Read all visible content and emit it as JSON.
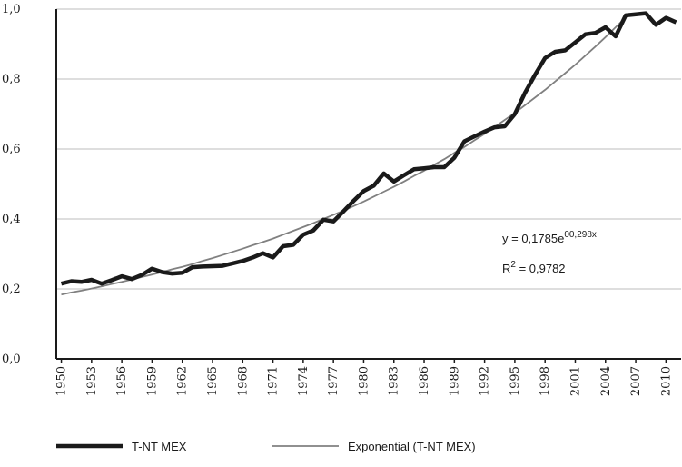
{
  "chart_data": {
    "type": "line",
    "x": [
      1950,
      1951,
      1952,
      1953,
      1954,
      1955,
      1956,
      1957,
      1958,
      1959,
      1960,
      1961,
      1962,
      1963,
      1964,
      1965,
      1966,
      1967,
      1968,
      1969,
      1970,
      1971,
      1972,
      1973,
      1974,
      1975,
      1976,
      1977,
      1978,
      1979,
      1980,
      1981,
      1982,
      1983,
      1984,
      1985,
      1986,
      1987,
      1988,
      1989,
      1990,
      1991,
      1992,
      1993,
      1994,
      1995,
      1996,
      1997,
      1998,
      1999,
      2000,
      2001,
      2002,
      2003,
      2004,
      2005,
      2006,
      2007,
      2008,
      2009,
      2010,
      2011
    ],
    "series": [
      {
        "name": "T-NT MEX",
        "color": "#1a1a1a",
        "width": 4.5,
        "values": [
          0.215,
          0.222,
          0.22,
          0.226,
          0.215,
          0.225,
          0.236,
          0.228,
          0.24,
          0.258,
          0.248,
          0.244,
          0.246,
          0.262,
          0.264,
          0.265,
          0.266,
          0.273,
          0.28,
          0.29,
          0.302,
          0.29,
          0.322,
          0.326,
          0.355,
          0.367,
          0.398,
          0.393,
          0.422,
          0.452,
          0.48,
          0.495,
          0.53,
          0.507,
          0.525,
          0.542,
          0.545,
          0.548,
          0.548,
          0.575,
          0.622,
          0.636,
          0.65,
          0.662,
          0.665,
          0.7,
          0.76,
          0.812,
          0.86,
          0.878,
          0.882,
          0.905,
          0.928,
          0.932,
          0.948,
          0.922,
          0.982,
          0.985,
          0.988,
          0.955,
          0.975,
          0.962
        ]
      },
      {
        "name": "Exponential (T-NT MEX)",
        "color": "#808080",
        "width": 1.8,
        "values": [
          0.184,
          0.19,
          0.195,
          0.201,
          0.207,
          0.214,
          0.22,
          0.227,
          0.234,
          0.241,
          0.248,
          0.256,
          0.263,
          0.271,
          0.28,
          0.288,
          0.297,
          0.306,
          0.315,
          0.325,
          0.334,
          0.344,
          0.355,
          0.366,
          0.377,
          0.388,
          0.4,
          0.412,
          0.424,
          0.437,
          0.45,
          0.464,
          0.478,
          0.492,
          0.507,
          0.523,
          0.538,
          0.555,
          0.571,
          0.589,
          0.606,
          0.625,
          0.643,
          0.663,
          0.683,
          0.703,
          0.725,
          0.747,
          0.769,
          0.793,
          0.817,
          0.841,
          0.867,
          0.893,
          0.92,
          0.948,
          0.976,
          null,
          null,
          null,
          null,
          null
        ]
      }
    ],
    "xlim": [
      1949.5,
      2011.5
    ],
    "xticks": [
      1950,
      1953,
      1956,
      1959,
      1962,
      1965,
      1968,
      1971,
      1974,
      1977,
      1980,
      1983,
      1986,
      1989,
      1992,
      1995,
      1998,
      2001,
      2004,
      2007,
      2010
    ],
    "ylim": [
      0,
      1
    ],
    "yticks": [
      {
        "value": 0,
        "label": "0,0"
      },
      {
        "value": 0.2,
        "label": "0,2"
      },
      {
        "value": 0.4,
        "label": "0,4"
      },
      {
        "value": 0.6,
        "label": "0,6"
      },
      {
        "value": 0.8,
        "label": "0,8"
      },
      {
        "value": 1,
        "label": "1,0"
      }
    ],
    "grid": true,
    "annotations": {
      "equation": "y = 0,1785e",
      "exponent": "00,298x",
      "r_squared_base": "R",
      "r_squared_power": "2",
      "r_squared_value": " = 0,9782"
    }
  }
}
